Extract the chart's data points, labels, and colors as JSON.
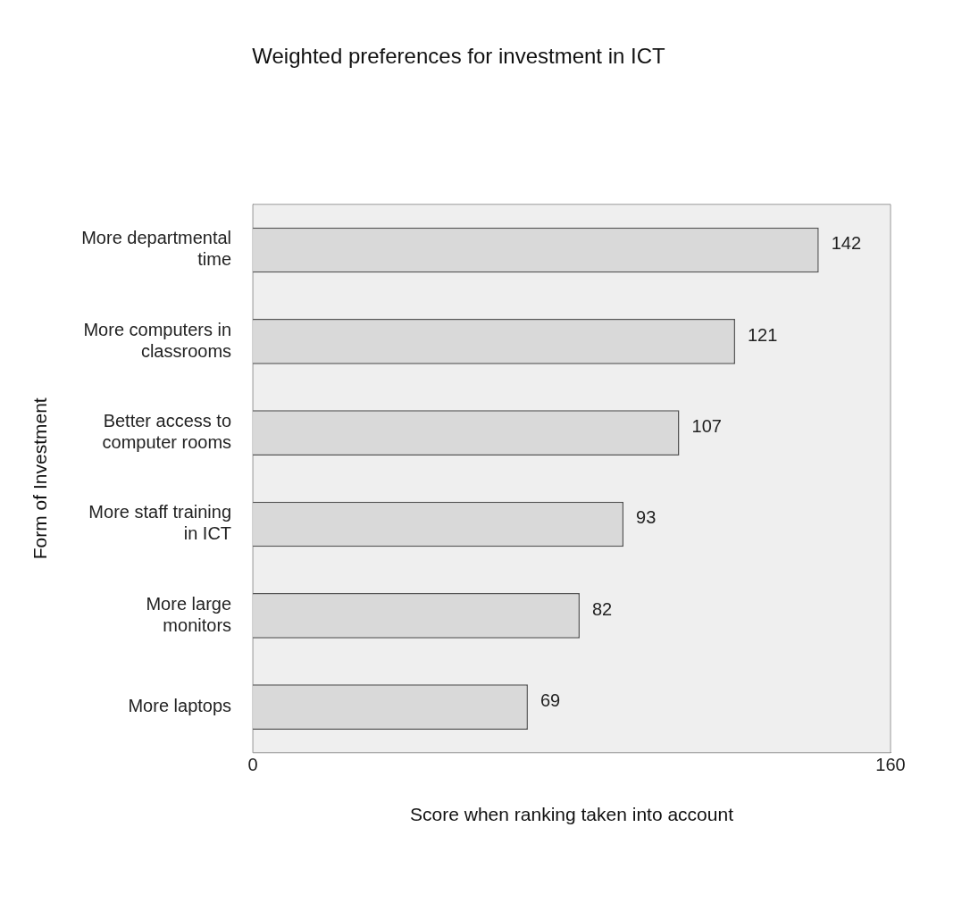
{
  "chart_data": {
    "type": "bar",
    "orientation": "horizontal",
    "title": "Weighted preferences for investment in ICT",
    "xlabel": "Score when ranking taken into account",
    "ylabel": "Form of Investment",
    "categories": [
      "More departmental time",
      "More computers in classrooms",
      "Better access to computer rooms",
      "More staff training in ICT",
      "More large monitors",
      "More laptops"
    ],
    "values": [
      142,
      121,
      107,
      93,
      82,
      69
    ],
    "color": "#d9d9d9",
    "xlim": [
      0,
      160
    ],
    "xticks": [
      0,
      160
    ],
    "data_labels": true,
    "grid": false,
    "legend": false
  }
}
